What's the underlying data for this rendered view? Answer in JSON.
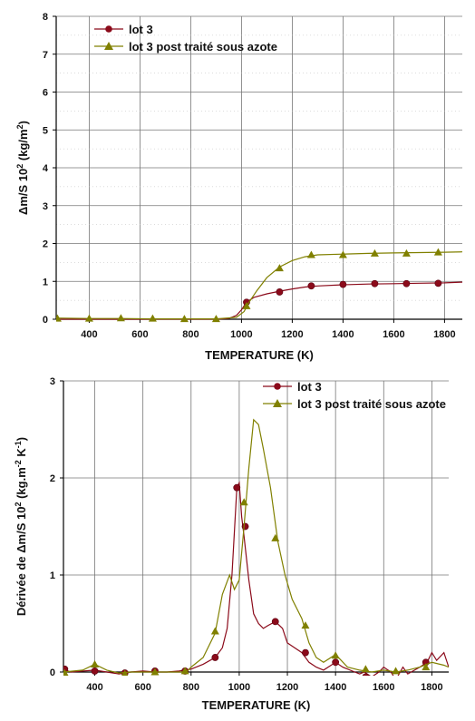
{
  "chart_data": [
    {
      "type": "line",
      "xlabel": "TEMPERATURE (K)",
      "ylabel_parts": [
        "Δm/S 10",
        "2",
        " (kg/m",
        "2",
        ")"
      ],
      "xlim": [
        270,
        1870
      ],
      "ylim": [
        0,
        8
      ],
      "xticks": [
        400,
        600,
        800,
        1000,
        1200,
        1400,
        1600,
        1800
      ],
      "yticks": [
        0,
        1,
        2,
        3,
        4,
        5,
        6,
        7,
        8
      ],
      "grid": true,
      "legend_position": "top-left",
      "colors": {
        "lot3": "#8b0a1a",
        "azote": "#808000"
      },
      "series": [
        {
          "name": "lot 3",
          "key": "lot3",
          "marker": "circle",
          "line": [
            [
              270,
              0
            ],
            [
              400,
              0
            ],
            [
              600,
              0
            ],
            [
              800,
              0
            ],
            [
              900,
              0
            ],
            [
              950,
              0.02
            ],
            [
              980,
              0.1
            ],
            [
              1000,
              0.25
            ],
            [
              1020,
              0.45
            ],
            [
              1050,
              0.58
            ],
            [
              1100,
              0.67
            ],
            [
              1150,
              0.74
            ],
            [
              1200,
              0.8
            ],
            [
              1250,
              0.85
            ],
            [
              1300,
              0.88
            ],
            [
              1400,
              0.91
            ],
            [
              1500,
              0.93
            ],
            [
              1600,
              0.94
            ],
            [
              1700,
              0.95
            ],
            [
              1800,
              0.96
            ],
            [
              1870,
              0.98
            ]
          ],
          "markers": [
            [
              1020,
              0.45
            ],
            [
              1150,
              0.72
            ],
            [
              1275,
              0.88
            ],
            [
              1400,
              0.92
            ],
            [
              1525,
              0.94
            ],
            [
              1650,
              0.94
            ],
            [
              1775,
              0.95
            ]
          ]
        },
        {
          "name": "lot 3 post traité sous azote",
          "key": "azote",
          "marker": "triangle",
          "line": [
            [
              270,
              0.03
            ],
            [
              400,
              0.02
            ],
            [
              520,
              0.02
            ],
            [
              650,
              0.01
            ],
            [
              780,
              0.01
            ],
            [
              900,
              0.01
            ],
            [
              980,
              0.05
            ],
            [
              1010,
              0.2
            ],
            [
              1030,
              0.45
            ],
            [
              1060,
              0.75
            ],
            [
              1100,
              1.1
            ],
            [
              1150,
              1.38
            ],
            [
              1200,
              1.55
            ],
            [
              1250,
              1.65
            ],
            [
              1300,
              1.7
            ],
            [
              1400,
              1.72
            ],
            [
              1500,
              1.74
            ],
            [
              1600,
              1.75
            ],
            [
              1700,
              1.76
            ],
            [
              1800,
              1.77
            ],
            [
              1870,
              1.78
            ]
          ],
          "markers": [
            [
              275,
              0.02
            ],
            [
              400,
              0.02
            ],
            [
              525,
              0.03
            ],
            [
              650,
              0.02
            ],
            [
              775,
              0.01
            ],
            [
              900,
              0.01
            ],
            [
              1020,
              0.35
            ],
            [
              1150,
              1.35
            ],
            [
              1275,
              1.7
            ],
            [
              1400,
              1.7
            ],
            [
              1525,
              1.74
            ],
            [
              1650,
              1.74
            ],
            [
              1775,
              1.77
            ]
          ]
        }
      ]
    },
    {
      "type": "line",
      "xlabel": "TEMPERATURE (K)",
      "ylabel_parts": [
        "Dérivée de Δm/S 10",
        "2",
        " (kg.m",
        "-2",
        " K",
        "-1",
        ")"
      ],
      "xlim": [
        270,
        1870
      ],
      "ylim": [
        0,
        3
      ],
      "xticks": [
        400,
        600,
        800,
        1000,
        1200,
        1400,
        1600,
        1800
      ],
      "yticks": [
        0,
        1,
        2,
        3
      ],
      "grid": true,
      "legend_position": "top-right",
      "colors": {
        "lot3": "#8b0a1a",
        "azote": "#808000"
      },
      "series": [
        {
          "name": "lot 3",
          "key": "lot3",
          "marker": "circle",
          "line": [
            [
              270,
              0.03
            ],
            [
              300,
              0
            ],
            [
              400,
              0.02
            ],
            [
              450,
              0
            ],
            [
              500,
              -0.02
            ],
            [
              550,
              0
            ],
            [
              600,
              0.01
            ],
            [
              650,
              0
            ],
            [
              700,
              0
            ],
            [
              750,
              0.01
            ],
            [
              800,
              0.03
            ],
            [
              850,
              0.08
            ],
            [
              900,
              0.15
            ],
            [
              930,
              0.25
            ],
            [
              950,
              0.45
            ],
            [
              970,
              1.0
            ],
            [
              990,
              1.9
            ],
            [
              1000,
              1.95
            ],
            [
              1010,
              1.6
            ],
            [
              1020,
              1.4
            ],
            [
              1040,
              0.95
            ],
            [
              1060,
              0.6
            ],
            [
              1080,
              0.5
            ],
            [
              1100,
              0.45
            ],
            [
              1120,
              0.48
            ],
            [
              1150,
              0.52
            ],
            [
              1180,
              0.45
            ],
            [
              1200,
              0.3
            ],
            [
              1230,
              0.25
            ],
            [
              1260,
              0.2
            ],
            [
              1290,
              0.1
            ],
            [
              1320,
              0.05
            ],
            [
              1350,
              0.02
            ],
            [
              1400,
              0.1
            ],
            [
              1430,
              0.05
            ],
            [
              1480,
              0
            ],
            [
              1500,
              -0.02
            ],
            [
              1520,
              0
            ],
            [
              1550,
              -0.05
            ],
            [
              1580,
              0
            ],
            [
              1600,
              0.05
            ],
            [
              1630,
              0
            ],
            [
              1650,
              -0.08
            ],
            [
              1680,
              0.05
            ],
            [
              1700,
              -0.02
            ],
            [
              1750,
              0.05
            ],
            [
              1780,
              0.1
            ],
            [
              1800,
              0.2
            ],
            [
              1820,
              0.12
            ],
            [
              1850,
              0.2
            ],
            [
              1870,
              0.05
            ]
          ],
          "markers": [
            [
              275,
              0.03
            ],
            [
              400,
              0.01
            ],
            [
              525,
              -0.01
            ],
            [
              650,
              0.01
            ],
            [
              775,
              0.01
            ],
            [
              900,
              0.15
            ],
            [
              990,
              1.9
            ],
            [
              1025,
              1.5
            ],
            [
              1150,
              0.52
            ],
            [
              1275,
              0.2
            ],
            [
              1400,
              0.1
            ],
            [
              1525,
              -0.05
            ],
            [
              1650,
              -0.08
            ],
            [
              1775,
              0.1
            ]
          ]
        },
        {
          "name": "lot 3 post traité sous azote",
          "key": "azote",
          "marker": "triangle",
          "line": [
            [
              270,
              0
            ],
            [
              350,
              0.02
            ],
            [
              400,
              0.08
            ],
            [
              450,
              0.02
            ],
            [
              500,
              -0.01
            ],
            [
              550,
              0
            ],
            [
              600,
              0
            ],
            [
              700,
              0
            ],
            [
              780,
              0
            ],
            [
              800,
              0.05
            ],
            [
              850,
              0.15
            ],
            [
              900,
              0.4
            ],
            [
              930,
              0.8
            ],
            [
              960,
              1.0
            ],
            [
              980,
              0.85
            ],
            [
              1000,
              0.95
            ],
            [
              1020,
              1.5
            ],
            [
              1040,
              2.1
            ],
            [
              1060,
              2.6
            ],
            [
              1080,
              2.55
            ],
            [
              1100,
              2.3
            ],
            [
              1130,
              1.9
            ],
            [
              1160,
              1.35
            ],
            [
              1190,
              1.0
            ],
            [
              1220,
              0.75
            ],
            [
              1260,
              0.55
            ],
            [
              1290,
              0.3
            ],
            [
              1320,
              0.15
            ],
            [
              1350,
              0.1
            ],
            [
              1400,
              0.18
            ],
            [
              1450,
              0.05
            ],
            [
              1500,
              0.02
            ],
            [
              1550,
              0
            ],
            [
              1600,
              0.02
            ],
            [
              1650,
              0
            ],
            [
              1700,
              0.02
            ],
            [
              1750,
              0.05
            ],
            [
              1800,
              0.1
            ],
            [
              1850,
              0.07
            ],
            [
              1870,
              0.05
            ]
          ],
          "markers": [
            [
              275,
              -0.01
            ],
            [
              400,
              0.08
            ],
            [
              525,
              -0.02
            ],
            [
              650,
              0
            ],
            [
              775,
              0.01
            ],
            [
              900,
              0.42
            ],
            [
              1020,
              1.75
            ],
            [
              1150,
              1.38
            ],
            [
              1275,
              0.48
            ],
            [
              1400,
              0.17
            ],
            [
              1525,
              0.03
            ],
            [
              1650,
              0.01
            ],
            [
              1775,
              0.05
            ]
          ]
        }
      ]
    }
  ]
}
